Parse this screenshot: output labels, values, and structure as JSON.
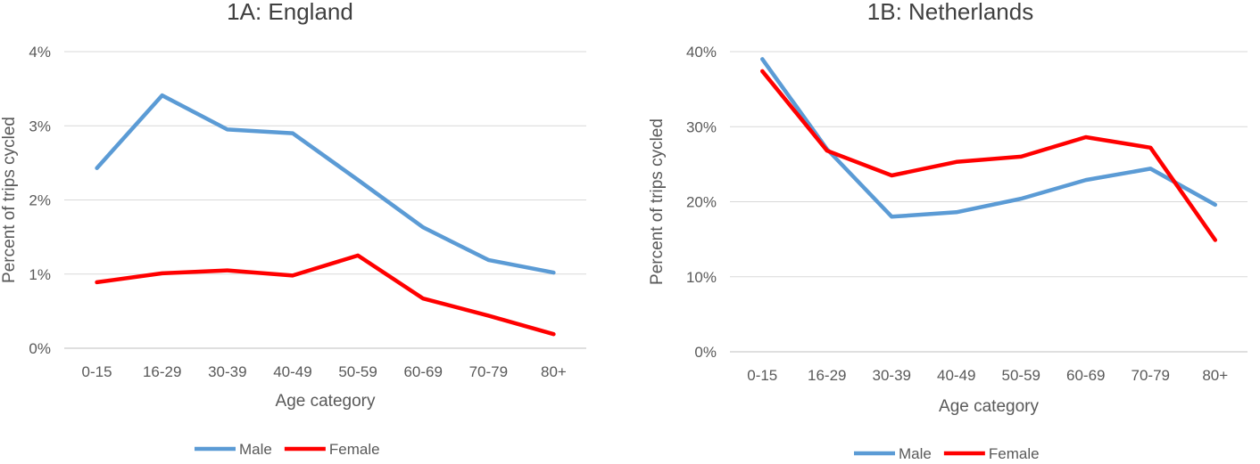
{
  "chart_data": [
    {
      "type": "line",
      "title": "1A: England",
      "xlabel": "Age category",
      "ylabel": "Percent of trips cycled",
      "categories": [
        "0-15",
        "16-29",
        "30-39",
        "40-49",
        "50-59",
        "60-69",
        "70-79",
        "80+"
      ],
      "yticks": [
        "0%",
        "1%",
        "2%",
        "3%",
        "4%"
      ],
      "ylim": [
        0,
        4
      ],
      "grid": true,
      "legend_position": "bottom",
      "series": [
        {
          "name": "Male",
          "color": "#5b9bd5",
          "values": [
            2.43,
            3.41,
            2.95,
            2.9,
            2.27,
            1.63,
            1.19,
            1.02
          ]
        },
        {
          "name": "Female",
          "color": "#ff0000",
          "values": [
            0.89,
            1.01,
            1.05,
            0.98,
            1.25,
            0.67,
            0.44,
            0.19
          ]
        }
      ]
    },
    {
      "type": "line",
      "title": "1B: Netherlands",
      "xlabel": "Age category",
      "ylabel": "Percent of trips cycled",
      "categories": [
        "0-15",
        "16-29",
        "30-39",
        "40-49",
        "50-59",
        "60-69",
        "70-79",
        "80+"
      ],
      "yticks": [
        "0%",
        "10%",
        "20%",
        "30%",
        "40%"
      ],
      "ylim": [
        0,
        40
      ],
      "grid": true,
      "legend_position": "bottom",
      "series": [
        {
          "name": "Male",
          "color": "#5b9bd5",
          "values": [
            39.0,
            27.0,
            18.0,
            18.6,
            20.4,
            22.9,
            24.4,
            19.6
          ]
        },
        {
          "name": "Female",
          "color": "#ff0000",
          "values": [
            37.4,
            26.8,
            23.5,
            25.3,
            26.0,
            28.6,
            27.2,
            14.9
          ]
        }
      ]
    }
  ]
}
